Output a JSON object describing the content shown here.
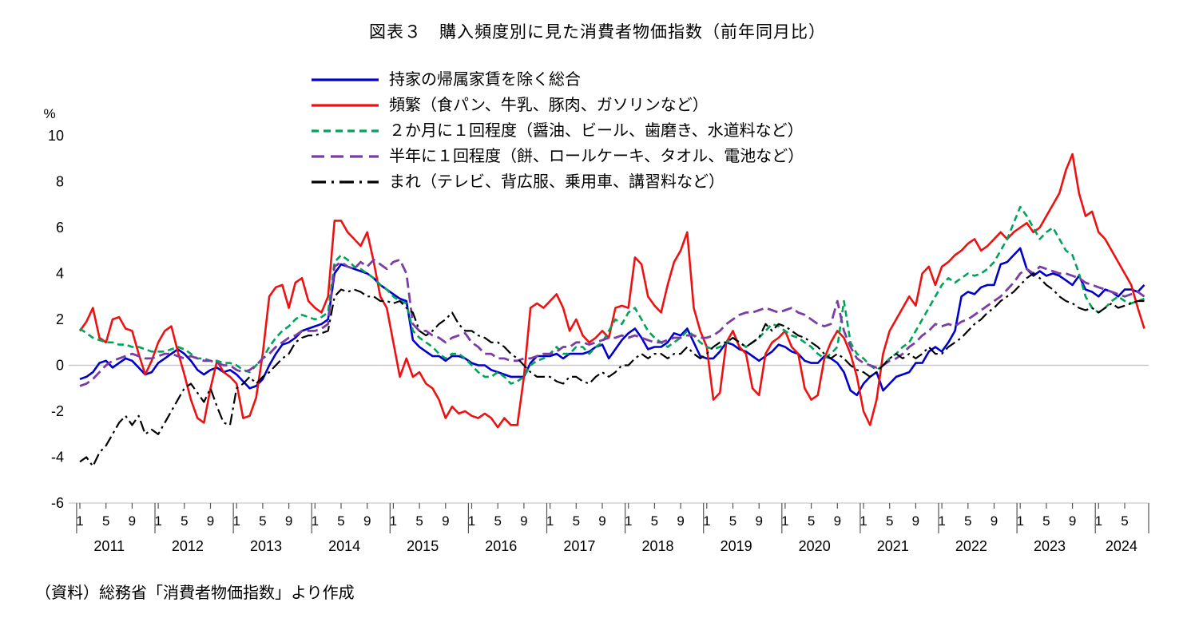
{
  "title": "図表３　購入頻度別に見た消費者物価指数（前年同月比）",
  "source": "（資料）総務省「消費者物価指数」より作成",
  "chart_data": {
    "type": "line",
    "title": "図表３　購入頻度別に見た消費者物価指数（前年同月比）",
    "ylabel": "%",
    "ylim": [
      -6,
      10
    ],
    "yticks": [
      10,
      8,
      6,
      4,
      2,
      0,
      -2,
      -4,
      -6
    ],
    "grid": "zero-line-only",
    "legend_position": "top-left-above-plot",
    "x_unit": "month",
    "x_start": "2011-01",
    "x_end": "2024-08",
    "years": [
      2011,
      2012,
      2013,
      2014,
      2015,
      2016,
      2017,
      2018,
      2019,
      2020,
      2021,
      2022,
      2023,
      2024
    ],
    "month_ticks": [
      1,
      5,
      9
    ],
    "last_year_months": [
      1,
      5
    ],
    "series": [
      {
        "name": "持家の帰属家賃を除く総合",
        "color": "#0000cc",
        "style": "solid",
        "width": 2.6,
        "dash": "",
        "legend_dash": "",
        "values": [
          -0.6,
          -0.5,
          -0.3,
          0.1,
          0.2,
          -0.1,
          0.1,
          0.3,
          0.2,
          -0.1,
          -0.4,
          -0.3,
          0.1,
          0.3,
          0.5,
          0.7,
          0.5,
          0.2,
          -0.2,
          -0.4,
          -0.2,
          -0.1,
          -0.3,
          -0.2,
          -0.4,
          -0.7,
          -1.0,
          -0.9,
          -0.6,
          0.0,
          0.5,
          0.9,
          1.0,
          1.2,
          1.5,
          1.6,
          1.7,
          1.8,
          2.0,
          4.0,
          4.4,
          4.3,
          4.2,
          4.1,
          4.0,
          3.8,
          3.5,
          3.3,
          3.1,
          2.9,
          2.8,
          1.1,
          0.8,
          0.6,
          0.4,
          0.4,
          0.2,
          0.4,
          0.4,
          0.3,
          0.1,
          0.0,
          0.0,
          -0.2,
          -0.3,
          -0.4,
          -0.5,
          -0.5,
          -0.5,
          0.1,
          0.4,
          0.4,
          0.4,
          0.5,
          0.3,
          0.5,
          0.5,
          0.5,
          0.6,
          0.8,
          0.9,
          0.3,
          0.7,
          1.1,
          1.4,
          1.6,
          1.2,
          0.7,
          0.8,
          0.8,
          1.0,
          1.4,
          1.3,
          1.6,
          1.0,
          0.4,
          0.3,
          0.3,
          0.6,
          1.0,
          0.9,
          0.7,
          0.6,
          0.4,
          0.2,
          0.4,
          0.6,
          0.9,
          0.8,
          0.6,
          0.5,
          0.2,
          0.1,
          0.1,
          0.4,
          0.3,
          0.1,
          -0.3,
          -1.1,
          -1.3,
          -0.8,
          -0.5,
          -0.3,
          -1.1,
          -0.8,
          -0.5,
          -0.4,
          -0.3,
          0.1,
          0.1,
          0.6,
          0.8,
          0.6,
          1.0,
          1.5,
          3.0,
          3.2,
          3.1,
          3.4,
          3.5,
          3.5,
          4.4,
          4.5,
          4.8,
          5.1,
          4.2,
          3.9,
          4.1,
          3.9,
          4.0,
          3.9,
          3.7,
          3.5,
          3.9,
          3.3,
          3.2,
          3.0,
          3.3,
          3.2,
          3.0,
          3.3,
          3.3,
          3.2,
          3.5
        ]
      },
      {
        "name": "頻繁（食パン、牛乳、豚肉、ガソリンなど）",
        "color": "#ee1111",
        "style": "solid",
        "width": 2.6,
        "dash": "",
        "legend_dash": "",
        "values": [
          1.5,
          1.9,
          2.5,
          1.2,
          1.0,
          2.0,
          2.1,
          1.6,
          1.5,
          0.5,
          -0.4,
          0.2,
          1.0,
          1.5,
          1.7,
          0.6,
          -0.4,
          -1.5,
          -2.3,
          -2.5,
          -1.0,
          0.2,
          -0.3,
          -0.5,
          -0.8,
          -2.3,
          -2.2,
          -1.4,
          0.5,
          3.0,
          3.4,
          3.5,
          2.5,
          3.6,
          3.8,
          2.8,
          2.5,
          2.3,
          3.0,
          6.3,
          6.3,
          5.8,
          5.5,
          5.2,
          5.8,
          4.5,
          3.0,
          2.5,
          1.0,
          -0.5,
          0.3,
          -0.5,
          -0.3,
          -0.8,
          -1.0,
          -1.5,
          -2.3,
          -1.8,
          -2.1,
          -2.0,
          -2.2,
          -2.3,
          -2.1,
          -2.3,
          -2.7,
          -2.3,
          -2.6,
          -2.6,
          -0.5,
          2.5,
          2.7,
          2.5,
          2.8,
          3.1,
          2.5,
          1.5,
          2.0,
          1.3,
          1.0,
          1.2,
          1.5,
          1.2,
          2.5,
          2.6,
          2.5,
          4.7,
          4.4,
          3.0,
          2.6,
          2.3,
          3.5,
          4.5,
          5.0,
          5.8,
          2.5,
          1.5,
          0.8,
          -1.5,
          -1.2,
          1.0,
          1.5,
          0.8,
          0.5,
          -1.0,
          -1.3,
          0.5,
          1.0,
          1.2,
          1.5,
          0.8,
          0.5,
          -1.0,
          -1.5,
          -1.3,
          0.3,
          1.0,
          1.5,
          1.2,
          0.5,
          -0.5,
          -2.0,
          -2.6,
          -1.5,
          0.5,
          1.5,
          2.0,
          2.5,
          3.0,
          2.6,
          4.0,
          4.3,
          3.5,
          4.3,
          4.5,
          4.8,
          5.0,
          5.3,
          5.5,
          5.0,
          5.2,
          5.5,
          5.8,
          5.5,
          5.8,
          6.0,
          6.2,
          5.8,
          6.0,
          6.5,
          7.0,
          7.5,
          8.5,
          9.2,
          7.5,
          6.5,
          6.7,
          5.8,
          5.5,
          5.0,
          4.5,
          4.0,
          3.5,
          2.5,
          1.6
        ]
      },
      {
        "name": "２か月に１回程度（醤油、ビール、歯磨き、水道料など）",
        "color": "#00a35a",
        "style": "dashed",
        "width": 2.6,
        "dash": "8 5",
        "legend_dash": "9 6",
        "values": [
          1.6,
          1.4,
          1.2,
          1.1,
          1.0,
          1.0,
          0.9,
          0.9,
          0.8,
          0.8,
          0.7,
          0.6,
          0.6,
          0.6,
          0.7,
          0.8,
          0.7,
          0.5,
          0.3,
          0.3,
          0.2,
          0.2,
          0.1,
          0.1,
          0.0,
          -0.2,
          -0.3,
          0.0,
          0.3,
          0.8,
          1.2,
          1.5,
          1.7,
          2.0,
          2.2,
          2.1,
          2.0,
          2.1,
          2.3,
          4.5,
          4.8,
          4.6,
          4.3,
          4.2,
          4.0,
          3.8,
          3.5,
          3.3,
          3.0,
          2.8,
          2.7,
          1.5,
          1.2,
          1.0,
          0.8,
          0.5,
          0.3,
          0.5,
          0.5,
          0.3,
          0.0,
          -0.3,
          -0.5,
          -0.5,
          -0.3,
          -0.5,
          -0.8,
          -0.7,
          -0.5,
          0.0,
          0.2,
          0.3,
          0.5,
          0.8,
          0.5,
          0.5,
          0.8,
          0.8,
          0.5,
          0.8,
          1.0,
          1.5,
          2.0,
          1.8,
          2.3,
          2.5,
          2.0,
          1.5,
          1.2,
          1.0,
          0.8,
          1.0,
          1.2,
          1.5,
          1.3,
          1.0,
          0.8,
          0.7,
          0.8,
          1.0,
          1.2,
          1.0,
          0.8,
          1.0,
          1.2,
          1.5,
          1.8,
          1.7,
          1.5,
          1.3,
          1.2,
          1.0,
          0.8,
          0.5,
          0.3,
          0.5,
          0.8,
          2.8,
          1.0,
          0.5,
          0.3,
          0.0,
          -0.2,
          0.0,
          0.3,
          0.5,
          0.8,
          1.0,
          1.5,
          2.0,
          2.5,
          3.0,
          3.5,
          3.8,
          3.6,
          3.8,
          4.0,
          3.9,
          4.0,
          4.2,
          4.5,
          5.0,
          5.5,
          6.2,
          6.9,
          6.5,
          6.0,
          5.5,
          5.8,
          6.0,
          5.5,
          5.0,
          4.8,
          4.0,
          3.0,
          2.5,
          2.3,
          2.5,
          2.8,
          3.0,
          2.8,
          2.7,
          2.8,
          2.9
        ]
      },
      {
        "name": "半年に１回程度（餅、ロールケーキ、タオル、電池など）",
        "color": "#7b3ca8",
        "style": "long-dash",
        "width": 2.8,
        "dash": "13 6",
        "legend_dash": "16 8",
        "values": [
          -0.9,
          -0.8,
          -0.6,
          -0.3,
          0.0,
          0.2,
          0.3,
          0.4,
          0.5,
          0.4,
          0.3,
          0.3,
          0.4,
          0.5,
          0.5,
          0.4,
          0.3,
          0.4,
          0.3,
          0.2,
          0.2,
          0.1,
          0.0,
          0.0,
          -0.2,
          -0.3,
          -0.2,
          0.0,
          0.3,
          0.5,
          0.8,
          1.0,
          1.2,
          1.3,
          1.5,
          1.5,
          1.5,
          1.6,
          1.8,
          4.3,
          4.5,
          4.3,
          4.2,
          4.5,
          4.3,
          4.6,
          4.4,
          4.2,
          4.5,
          4.6,
          4.0,
          1.8,
          1.5,
          1.5,
          1.3,
          1.2,
          1.0,
          1.2,
          1.3,
          1.4,
          1.0,
          0.8,
          0.5,
          0.5,
          0.3,
          0.3,
          0.2,
          0.2,
          0.3,
          0.3,
          0.4,
          0.5,
          0.5,
          0.6,
          0.8,
          0.8,
          1.0,
          1.0,
          0.9,
          1.0,
          1.1,
          1.2,
          1.2,
          1.3,
          1.2,
          1.3,
          1.2,
          1.1,
          1.0,
          1.0,
          1.1,
          1.2,
          1.2,
          1.3,
          1.3,
          1.2,
          1.2,
          1.3,
          1.5,
          1.8,
          2.0,
          2.2,
          2.3,
          2.3,
          2.4,
          2.5,
          2.4,
          2.3,
          2.4,
          2.5,
          2.3,
          2.2,
          2.0,
          1.8,
          1.7,
          1.8,
          2.8,
          1.5,
          0.8,
          0.3,
          0.1,
          0.0,
          -0.1,
          0.0,
          0.2,
          0.3,
          0.5,
          0.8,
          1.0,
          1.3,
          1.5,
          1.8,
          1.7,
          1.8,
          1.7,
          1.9,
          2.0,
          2.2,
          2.4,
          2.6,
          2.8,
          3.0,
          3.3,
          3.6,
          4.0,
          4.2,
          4.0,
          4.3,
          4.2,
          4.1,
          4.0,
          4.0,
          3.9,
          3.8,
          3.6,
          3.5,
          3.4,
          3.3,
          3.2,
          3.1,
          3.0,
          3.1,
          3.2,
          3.0
        ]
      },
      {
        "name": "まれ（テレビ、背広服、乗用車、講習料など）",
        "color": "#000000",
        "style": "dash-dot",
        "width": 2.2,
        "dash": "14 5 3 5",
        "legend_dash": "18 7 3 7",
        "values": [
          -4.2,
          -4.0,
          -4.4,
          -3.8,
          -3.5,
          -3.0,
          -2.5,
          -2.2,
          -2.6,
          -2.2,
          -3.0,
          -2.8,
          -3.0,
          -2.5,
          -2.0,
          -1.5,
          -1.0,
          -0.8,
          -1.2,
          -1.6,
          -1.0,
          -1.8,
          -2.5,
          -2.6,
          -1.0,
          -0.8,
          -0.5,
          -0.8,
          -0.5,
          -0.3,
          0.0,
          0.3,
          0.5,
          1.0,
          1.2,
          1.3,
          1.3,
          1.4,
          1.5,
          3.0,
          3.3,
          3.2,
          3.3,
          3.2,
          3.0,
          3.0,
          2.8,
          2.8,
          2.7,
          2.8,
          2.5,
          2.3,
          1.5,
          1.3,
          1.5,
          1.8,
          2.0,
          2.3,
          1.8,
          1.5,
          1.5,
          1.3,
          1.2,
          1.0,
          1.0,
          0.8,
          0.5,
          0.3,
          0.0,
          -0.3,
          -0.5,
          -0.5,
          -0.5,
          -0.7,
          -0.8,
          -0.5,
          -0.5,
          -0.7,
          -0.8,
          -0.5,
          -0.3,
          -0.5,
          -0.3,
          0.0,
          0.0,
          0.3,
          0.5,
          0.3,
          0.5,
          0.5,
          0.3,
          0.5,
          0.5,
          0.8,
          0.5,
          0.3,
          0.5,
          0.8,
          1.0,
          1.0,
          1.2,
          1.0,
          0.8,
          1.0,
          1.2,
          1.8,
          1.5,
          1.8,
          1.7,
          1.5,
          1.3,
          1.2,
          1.0,
          0.8,
          0.5,
          0.3,
          0.5,
          0.3,
          0.0,
          -0.2,
          -0.3,
          -0.5,
          -0.3,
          0.0,
          0.3,
          0.5,
          0.3,
          0.5,
          0.3,
          0.5,
          0.8,
          0.5,
          0.5,
          0.8,
          1.0,
          1.2,
          1.5,
          1.8,
          2.0,
          2.3,
          2.5,
          2.8,
          3.0,
          3.2,
          3.5,
          3.8,
          4.0,
          3.8,
          3.5,
          3.3,
          3.0,
          2.8,
          2.7,
          2.5,
          2.4,
          2.5,
          2.3,
          2.5,
          2.7,
          2.5,
          2.6,
          2.7,
          2.8,
          2.8
        ]
      }
    ]
  }
}
